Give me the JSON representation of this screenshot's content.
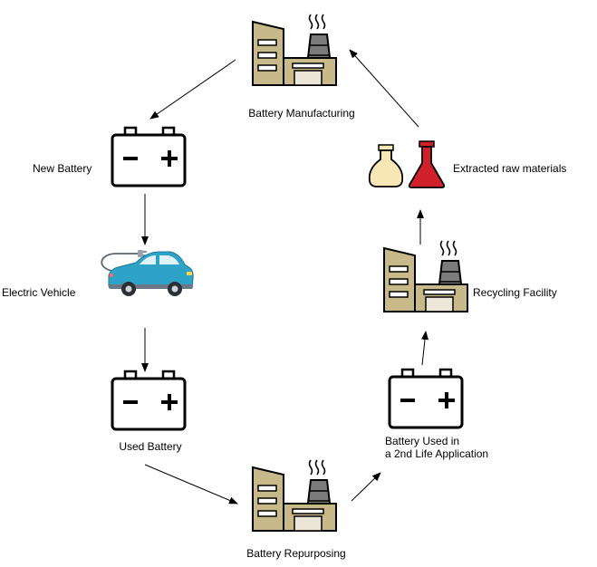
{
  "labels": {
    "battery_manufacturing": "Battery Manufacturing",
    "new_battery": "New Battery",
    "electric_vehicle": "Electric Vehicle",
    "used_battery": "Used Battery",
    "battery_repurposing": "Battery Repurposing",
    "battery_second_life_line1": "Battery Used in",
    "battery_second_life_line2": "a 2nd Life Application",
    "recycling_facility": "Recycling Facility",
    "extracted_raw_materials": "Extracted raw materials"
  },
  "colors": {
    "factory_tan": "#c8b98a",
    "factory_dark": "#7b7b7b",
    "car_body": "#2fa3c7",
    "flask_cream": "#f6e7b5",
    "flask_red": "#d0202a",
    "stroke": "#000000"
  },
  "icons": {
    "factory": "factory-icon",
    "battery": "battery-icon",
    "car": "electric-car-icon",
    "flasks": "flask-icon"
  }
}
